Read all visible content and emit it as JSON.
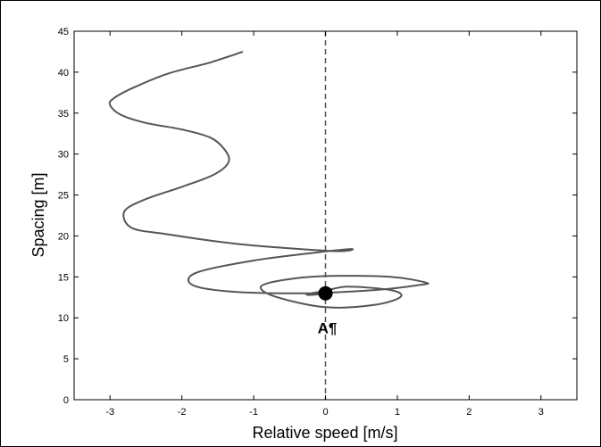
{
  "chart_data": {
    "type": "line",
    "title": "",
    "xlabel": "Relative speed [m/s]",
    "ylabel": "Spacing [m]",
    "xlim": [
      -3.5,
      3.5
    ],
    "ylim": [
      0,
      45
    ],
    "xticks": [
      "-3",
      "-2",
      "-1",
      "0",
      "1",
      "2",
      "3"
    ],
    "yticks": [
      "0",
      "5",
      "10",
      "15",
      "20",
      "25",
      "30",
      "35",
      "40",
      "45"
    ],
    "grid": false,
    "reference_line": {
      "x": 0,
      "style": "dashed"
    },
    "colors": {
      "trajectory": "#555555",
      "marker": "#000000",
      "reference": "#555555"
    },
    "series": [
      {
        "x": [
          -1.15,
          -1.6,
          -2.2,
          -2.7,
          -2.95,
          -3.0,
          -2.85,
          -2.5,
          -2.0,
          -1.6,
          -1.4,
          -1.35,
          -1.55,
          -2.0,
          -2.5,
          -2.8,
          -2.7,
          -2.2,
          -1.2,
          0.0,
          0.3,
          0.35,
          -0.1,
          -1.0,
          -1.8,
          -1.85,
          -1.3,
          -0.3,
          0.7,
          1.3,
          1.4,
          0.9,
          0.0,
          -0.6,
          -0.9,
          -0.7,
          0.0,
          0.7,
          1.05,
          0.9,
          0.3,
          0.0,
          -0.25,
          -0.2,
          0.05
        ],
        "y": [
          42.5,
          41.2,
          39.8,
          38.0,
          36.8,
          36.0,
          34.8,
          33.8,
          33.0,
          32.0,
          30.5,
          29.0,
          27.5,
          26.0,
          24.5,
          23.0,
          21.0,
          20.2,
          19.0,
          18.2,
          18.2,
          18.4,
          18.0,
          17.0,
          15.5,
          14.0,
          13.2,
          13.0,
          13.4,
          14.0,
          14.3,
          15.0,
          15.1,
          14.6,
          13.8,
          12.6,
          11.3,
          11.6,
          12.6,
          13.4,
          13.8,
          13.3,
          12.9,
          12.8,
          13.0
        ]
      }
    ],
    "annotations": [
      {
        "text": "A¶",
        "x": 0.0,
        "y": 13.0
      }
    ]
  }
}
